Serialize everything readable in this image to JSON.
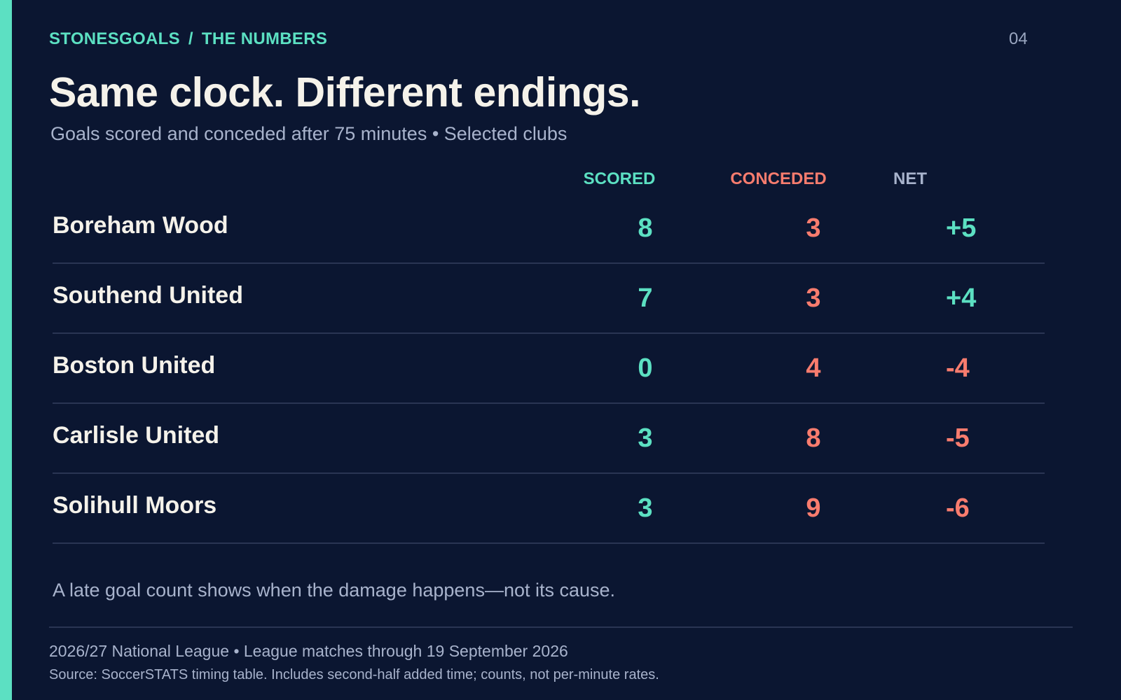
{
  "breadcrumb": {
    "brand": "STONESGOALS",
    "separator": "/",
    "section": "THE NUMBERS"
  },
  "page_number": "04",
  "title": "Same clock. Different endings.",
  "subtitle": "Goals scored and conceded after 75 minutes • Selected clubs",
  "columns": {
    "scored": "SCORED",
    "conceded": "CONCEDED",
    "net": "NET"
  },
  "rows": [
    {
      "club": "Boreham Wood",
      "scored": "8",
      "conceded": "3",
      "net": "+5"
    },
    {
      "club": "Southend United",
      "scored": "7",
      "conceded": "3",
      "net": "+4"
    },
    {
      "club": "Boston United",
      "scored": "0",
      "conceded": "4",
      "net": "-4"
    },
    {
      "club": "Carlisle United",
      "scored": "3",
      "conceded": "8",
      "net": "-5"
    },
    {
      "club": "Solihull Moors",
      "scored": "3",
      "conceded": "9",
      "net": "-6"
    }
  ],
  "note": "A late goal count shows when the damage happens—not its cause.",
  "footer": {
    "league": "2026/27 National League • League matches through 19 September 2026",
    "source": "Source: SoccerSTATS timing table. Includes second-half added time; counts, not per-minute rates."
  },
  "colors": {
    "background": "#0b1631",
    "accent": "#5ce0c2",
    "positive": "#5ce0c2",
    "negative": "#f87c6e",
    "muted": "#a8b3cc",
    "text": "#f5f2ea"
  }
}
